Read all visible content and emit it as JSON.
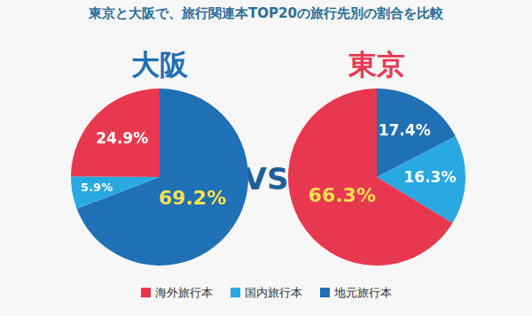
{
  "title": "東京と大阪で、旅行関連本TOP20の旅行先別の割合を比較",
  "separator": "VS",
  "chart_data": [
    {
      "type": "pie",
      "title": "大阪",
      "categories": [
        "海外旅行本",
        "国内旅行本",
        "地元旅行本"
      ],
      "values": [
        24.9,
        5.9,
        69.2
      ],
      "value_labels": [
        "24.9%",
        "5.9%",
        "69.2%"
      ],
      "colors": [
        "#e8384f",
        "#29a9e1",
        "#1f70b5"
      ],
      "data_labels": true,
      "legend": "bottom"
    },
    {
      "type": "pie",
      "title": "東京",
      "categories": [
        "海外旅行本",
        "国内旅行本",
        "地元旅行本"
      ],
      "values": [
        66.3,
        16.3,
        17.4
      ],
      "value_labels": [
        "66.3%",
        "16.3%",
        "17.4%"
      ],
      "colors": [
        "#e8384f",
        "#29a9e1",
        "#1f70b5"
      ],
      "data_labels": true,
      "legend": "bottom"
    }
  ]
}
